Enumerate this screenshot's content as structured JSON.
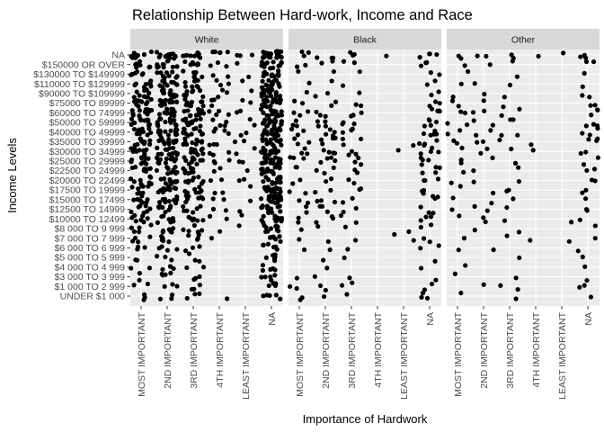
{
  "chart_data": {
    "type": "scatter",
    "jitter": true,
    "title": "Relationship Between Hard-work, Income and Race",
    "xlabel": "Importance of Hardwork",
    "ylabel": "Income Levels",
    "x_categories": [
      "MOST IMPORTANT",
      "2ND IMPORTANT",
      "3RD IMPORTANT",
      "4TH IMPORTANT",
      "LEAST IMPORTANT",
      "NA"
    ],
    "y_categories": [
      "UNDER $1 000",
      "$1 000 TO 2 999",
      "$3 000 TO 3 999",
      "$4 000 TO 4 999",
      "$5 000 TO 5 999",
      "$6 000 TO 6 999",
      "$7 000 TO 7 999",
      "$8 000 TO 9 999",
      "$10000 TO 12499",
      "$12500 TO 14999",
      "$15000 TO 17499",
      "$17500 TO 19999",
      "$20000 TO 22499",
      "$22500 TO 24999",
      "$25000 TO 29999",
      "$30000 TO 34999",
      "$35000 TO 39999",
      "$40000 TO 49999",
      "$50000 TO 59999",
      "$60000 TO 74999",
      "$75000 TO 89999",
      "$90000 TO $109999",
      "$110000 TO $129999",
      "$130000 TO $149999",
      "$150000 OR OVER",
      "NA"
    ],
    "facets": [
      {
        "name": "White",
        "counts": [
          [
            3,
            3,
            3,
            1,
            0,
            5
          ],
          [
            2,
            3,
            3,
            0,
            0,
            5
          ],
          [
            2,
            4,
            3,
            0,
            0,
            5
          ],
          [
            2,
            3,
            2,
            0,
            0,
            5
          ],
          [
            2,
            3,
            3,
            0,
            0,
            6
          ],
          [
            3,
            4,
            3,
            0,
            0,
            6
          ],
          [
            4,
            5,
            4,
            1,
            0,
            8
          ],
          [
            5,
            6,
            5,
            1,
            1,
            10
          ],
          [
            7,
            8,
            6,
            2,
            1,
            12
          ],
          [
            7,
            8,
            6,
            2,
            1,
            13
          ],
          [
            8,
            9,
            7,
            2,
            1,
            14
          ],
          [
            8,
            10,
            8,
            2,
            1,
            14
          ],
          [
            8,
            10,
            8,
            2,
            2,
            14
          ],
          [
            8,
            10,
            8,
            2,
            1,
            15
          ],
          [
            10,
            12,
            10,
            3,
            2,
            18
          ],
          [
            10,
            12,
            10,
            3,
            2,
            18
          ],
          [
            10,
            12,
            10,
            3,
            2,
            18
          ],
          [
            12,
            14,
            12,
            4,
            2,
            20
          ],
          [
            12,
            14,
            12,
            4,
            2,
            20
          ],
          [
            12,
            14,
            12,
            4,
            2,
            20
          ],
          [
            10,
            12,
            10,
            3,
            2,
            18
          ],
          [
            9,
            11,
            9,
            3,
            1,
            16
          ],
          [
            8,
            10,
            8,
            3,
            1,
            14
          ],
          [
            7,
            9,
            7,
            2,
            1,
            12
          ],
          [
            8,
            10,
            8,
            3,
            1,
            14
          ],
          [
            10,
            12,
            10,
            6,
            3,
            22
          ]
        ]
      },
      {
        "name": "Black",
        "counts": [
          [
            2,
            1,
            1,
            0,
            0,
            3
          ],
          [
            2,
            2,
            2,
            0,
            0,
            2
          ],
          [
            1,
            1,
            1,
            0,
            0,
            1
          ],
          [
            0,
            1,
            0,
            0,
            0,
            1
          ],
          [
            0,
            1,
            1,
            0,
            0,
            1
          ],
          [
            1,
            1,
            1,
            0,
            0,
            2
          ],
          [
            1,
            1,
            1,
            0,
            2,
            2
          ],
          [
            1,
            1,
            1,
            0,
            1,
            2
          ],
          [
            2,
            3,
            2,
            0,
            0,
            3
          ],
          [
            2,
            3,
            2,
            0,
            0,
            3
          ],
          [
            2,
            3,
            2,
            0,
            0,
            3
          ],
          [
            2,
            2,
            2,
            0,
            0,
            3
          ],
          [
            2,
            2,
            2,
            0,
            0,
            3
          ],
          [
            2,
            3,
            2,
            0,
            0,
            4
          ],
          [
            3,
            4,
            3,
            0,
            0,
            4
          ],
          [
            3,
            4,
            3,
            0,
            1,
            4
          ],
          [
            3,
            4,
            3,
            0,
            1,
            4
          ],
          [
            3,
            4,
            3,
            0,
            0,
            5
          ],
          [
            3,
            4,
            3,
            0,
            0,
            5
          ],
          [
            3,
            3,
            3,
            0,
            0,
            4
          ],
          [
            2,
            2,
            2,
            0,
            0,
            3
          ],
          [
            1,
            2,
            1,
            0,
            0,
            2
          ],
          [
            1,
            1,
            1,
            0,
            0,
            2
          ],
          [
            1,
            1,
            1,
            0,
            0,
            2
          ],
          [
            2,
            2,
            2,
            0,
            0,
            3
          ],
          [
            3,
            3,
            3,
            1,
            0,
            4
          ]
        ]
      },
      {
        "name": "Other",
        "counts": [
          [
            1,
            0,
            1,
            0,
            0,
            1
          ],
          [
            0,
            1,
            2,
            0,
            0,
            2
          ],
          [
            1,
            0,
            1,
            0,
            0,
            1
          ],
          [
            1,
            0,
            0,
            0,
            0,
            1
          ],
          [
            0,
            0,
            1,
            0,
            0,
            1
          ],
          [
            1,
            1,
            0,
            0,
            0,
            1
          ],
          [
            1,
            0,
            1,
            1,
            1,
            1
          ],
          [
            0,
            1,
            1,
            0,
            0,
            1
          ],
          [
            1,
            2,
            1,
            0,
            1,
            1
          ],
          [
            1,
            2,
            1,
            0,
            0,
            2
          ],
          [
            1,
            1,
            1,
            0,
            0,
            1
          ],
          [
            1,
            1,
            2,
            0,
            0,
            2
          ],
          [
            1,
            1,
            1,
            0,
            0,
            2
          ],
          [
            1,
            1,
            1,
            0,
            0,
            2
          ],
          [
            2,
            1,
            1,
            0,
            0,
            2
          ],
          [
            1,
            2,
            1,
            1,
            0,
            2
          ],
          [
            2,
            2,
            1,
            1,
            0,
            3
          ],
          [
            2,
            2,
            2,
            0,
            0,
            3
          ],
          [
            2,
            2,
            2,
            0,
            0,
            3
          ],
          [
            2,
            2,
            2,
            0,
            0,
            3
          ],
          [
            2,
            1,
            1,
            0,
            0,
            2
          ],
          [
            1,
            1,
            1,
            0,
            0,
            2
          ],
          [
            1,
            1,
            1,
            0,
            0,
            1
          ],
          [
            1,
            0,
            1,
            0,
            0,
            1
          ],
          [
            1,
            1,
            1,
            0,
            0,
            2
          ],
          [
            2,
            2,
            2,
            1,
            1,
            3
          ]
        ]
      }
    ],
    "grid": true,
    "legend": "none",
    "colors": {
      "panel_background": "#ebebeb",
      "grid": "#ffffff",
      "strip_background": "#d9d9d9",
      "point": "#000000"
    }
  }
}
